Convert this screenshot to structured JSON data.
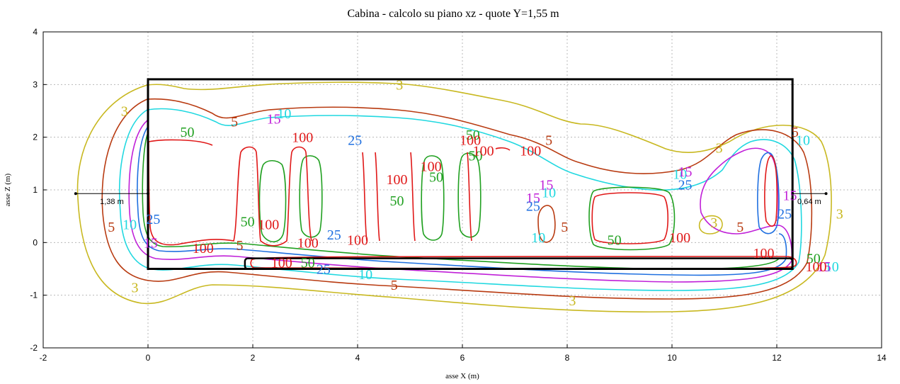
{
  "chart_data": {
    "type": "contour",
    "title": "Cabina  -  calcolo su piano xz  -  quote Y=1,55 m",
    "xlabel": "asse X (m)",
    "ylabel": "asse Z (m)",
    "xlim": [
      -2,
      14
    ],
    "ylim": [
      -2,
      4
    ],
    "xticks": [
      "-2",
      "0",
      "2",
      "4",
      "6",
      "8",
      "10",
      "12",
      "14"
    ],
    "yticks": [
      "-2",
      "-1",
      "0",
      "1",
      "2",
      "3",
      "4"
    ],
    "grid": true,
    "levels": [
      {
        "value": "3",
        "color": "#c8b820"
      },
      {
        "value": "5",
        "color": "#b83a10"
      },
      {
        "value": "10",
        "color": "#20d8e0"
      },
      {
        "value": "15",
        "color": "#c020d8"
      },
      {
        "value": "25",
        "color": "#2070e0"
      },
      {
        "value": "50",
        "color": "#20a020"
      },
      {
        "value": "100",
        "color": "#e01818"
      }
    ],
    "cabin_outline": {
      "x0": 0,
      "z0": -0.5,
      "x1": 12.3,
      "z1": 3.1
    },
    "bottom_bar": {
      "x0": 1.85,
      "z0": -0.5,
      "x1": 12.3,
      "z1": -0.3
    },
    "dimensions": [
      {
        "text": "1,38 m",
        "x_from": -1.38,
        "x_to": 0,
        "z": 0.93
      },
      {
        "text": "0,64 m",
        "x_from": 12.3,
        "x_to": 12.94,
        "z": 0.93
      }
    ],
    "contour_labels": [
      {
        "text": "3",
        "x": 4.8,
        "z": 3.0
      },
      {
        "text": "3",
        "x": -0.45,
        "z": 2.5
      },
      {
        "text": "3",
        "x": 10.9,
        "z": 1.8
      },
      {
        "text": "3",
        "x": 13.2,
        "z": 0.55
      },
      {
        "text": "3",
        "x": 10.8,
        "z": 0.38
      },
      {
        "text": "3",
        "x": -0.25,
        "z": -0.85
      },
      {
        "text": "3",
        "x": 8.1,
        "z": -1.1
      },
      {
        "text": "5",
        "x": 1.65,
        "z": 2.3
      },
      {
        "text": "5",
        "x": 12.35,
        "z": 2.1
      },
      {
        "text": "5",
        "x": 7.65,
        "z": 1.95
      },
      {
        "text": "5",
        "x": -0.7,
        "z": 0.3
      },
      {
        "text": "5",
        "x": 7.95,
        "z": 0.3
      },
      {
        "text": "5",
        "x": 11.3,
        "z": 0.3
      },
      {
        "text": "5",
        "x": 1.75,
        "z": -0.05
      },
      {
        "text": "5",
        "x": 4.7,
        "z": -0.8
      },
      {
        "text": "10",
        "x": 2.6,
        "z": 2.45
      },
      {
        "text": "10",
        "x": 12.5,
        "z": 1.95
      },
      {
        "text": "10",
        "x": 7.65,
        "z": 0.95
      },
      {
        "text": "10",
        "x": 10.15,
        "z": 1.3
      },
      {
        "text": "10",
        "x": -0.35,
        "z": 0.35
      },
      {
        "text": "10",
        "x": 7.45,
        "z": 0.1
      },
      {
        "text": "10",
        "x": 13.05,
        "z": -0.45
      },
      {
        "text": "10",
        "x": 4.15,
        "z": -0.6
      },
      {
        "text": "15",
        "x": 2.4,
        "z": 2.35
      },
      {
        "text": "15",
        "x": 7.6,
        "z": 1.1
      },
      {
        "text": "15",
        "x": 7.35,
        "z": 0.85
      },
      {
        "text": "15",
        "x": 10.25,
        "z": 1.35
      },
      {
        "text": "15",
        "x": 12.25,
        "z": 0.9
      },
      {
        "text": "15",
        "x": 0.05,
        "z": 0.0
      },
      {
        "text": "15",
        "x": 12.9,
        "z": -0.45
      },
      {
        "text": "25",
        "x": 3.95,
        "z": 1.95
      },
      {
        "text": "25",
        "x": 0.1,
        "z": 0.45
      },
      {
        "text": "25",
        "x": 7.35,
        "z": 0.7
      },
      {
        "text": "25",
        "x": 10.25,
        "z": 1.1
      },
      {
        "text": "25",
        "x": 12.15,
        "z": 0.55
      },
      {
        "text": "25",
        "x": 3.55,
        "z": 0.15
      },
      {
        "text": "25",
        "x": 3.35,
        "z": -0.5
      },
      {
        "text": "50",
        "x": 0.75,
        "z": 2.1
      },
      {
        "text": "50",
        "x": 6.2,
        "z": 2.05
      },
      {
        "text": "50",
        "x": 6.25,
        "z": 1.65
      },
      {
        "text": "50",
        "x": 5.5,
        "z": 1.25
      },
      {
        "text": "50",
        "x": 4.75,
        "z": 0.8
      },
      {
        "text": "50",
        "x": 1.9,
        "z": 0.4
      },
      {
        "text": "50",
        "x": 8.9,
        "z": 0.05
      },
      {
        "text": "50",
        "x": 3.05,
        "z": -0.38
      },
      {
        "text": "50",
        "x": 12.7,
        "z": -0.3
      },
      {
        "text": "100",
        "x": 2.95,
        "z": 2.0
      },
      {
        "text": "100",
        "x": 6.15,
        "z": 1.95
      },
      {
        "text": "100",
        "x": 6.4,
        "z": 1.75
      },
      {
        "text": "100",
        "x": 7.3,
        "z": 1.75
      },
      {
        "text": "100",
        "x": 5.4,
        "z": 1.45
      },
      {
        "text": "100",
        "x": 4.75,
        "z": 1.2
      },
      {
        "text": "100",
        "x": 2.3,
        "z": 0.35
      },
      {
        "text": "100",
        "x": 10.15,
        "z": 0.1
      },
      {
        "text": "100",
        "x": 1.05,
        "z": -0.1
      },
      {
        "text": "100",
        "x": 3.05,
        "z": 0.0
      },
      {
        "text": "100",
        "x": 4.0,
        "z": 0.05
      },
      {
        "text": "100",
        "x": 2.55,
        "z": -0.38
      },
      {
        "text": "100",
        "x": 11.75,
        "z": -0.2
      },
      {
        "text": "100",
        "x": 12.75,
        "z": -0.45
      }
    ]
  }
}
